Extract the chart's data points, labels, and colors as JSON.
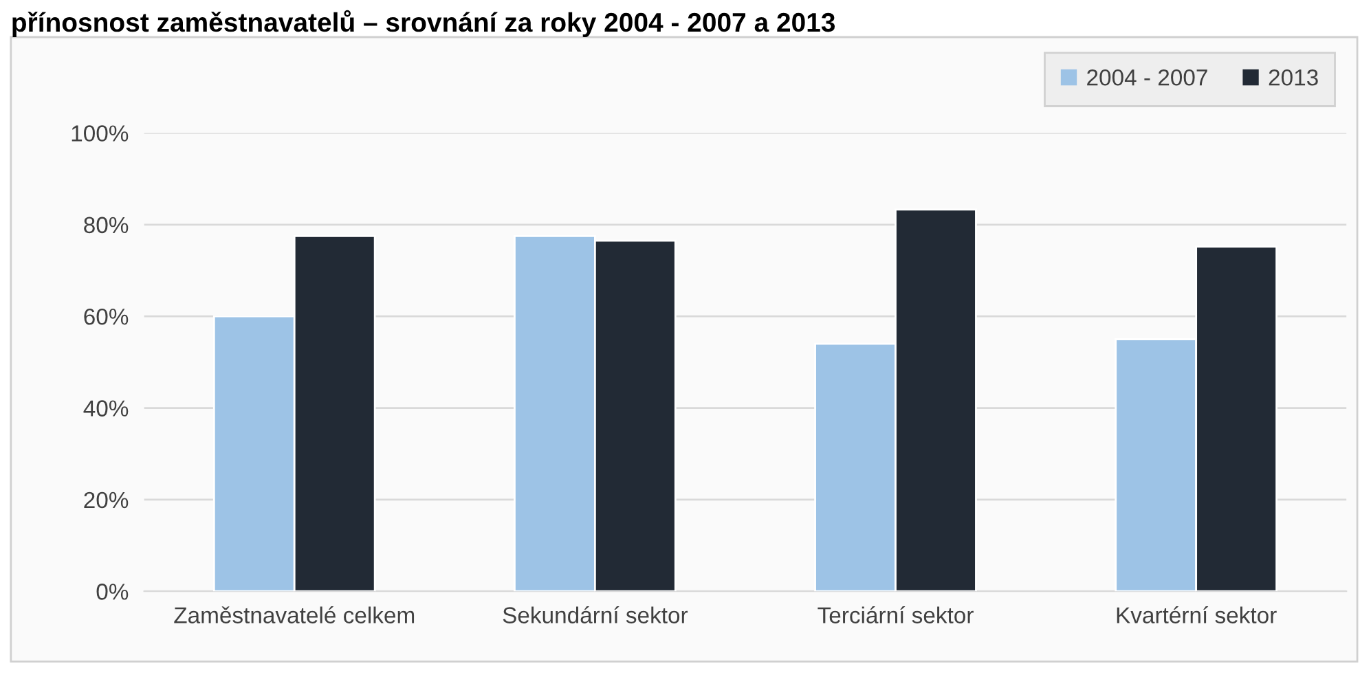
{
  "chart_data": {
    "type": "bar",
    "title": "přínosnost zaměstnavatelů – srovnání za roky 2004 - 2007 a 2013",
    "categories": [
      "Zaměstnavatelé celkem",
      "Sekundární sektor",
      "Terciární sektor",
      "Kvartérní sektor"
    ],
    "series": [
      {
        "name": "2004 - 2007",
        "color": "#9dc3e6",
        "values": [
          60,
          77.5,
          54,
          55
        ]
      },
      {
        "name": "2013",
        "color": "#222a35",
        "values": [
          77.5,
          76.5,
          83.3,
          75.2
        ]
      }
    ],
    "ylim": [
      0,
      100
    ],
    "yticks": [
      {
        "value": 0,
        "label": "0%"
      },
      {
        "value": 20,
        "label": "20%"
      },
      {
        "value": 40,
        "label": "40%"
      },
      {
        "value": 60,
        "label": "60%"
      },
      {
        "value": 80,
        "label": "80%"
      },
      {
        "value": 100,
        "label": "100%"
      }
    ],
    "grid": "y",
    "legend": "top right"
  }
}
